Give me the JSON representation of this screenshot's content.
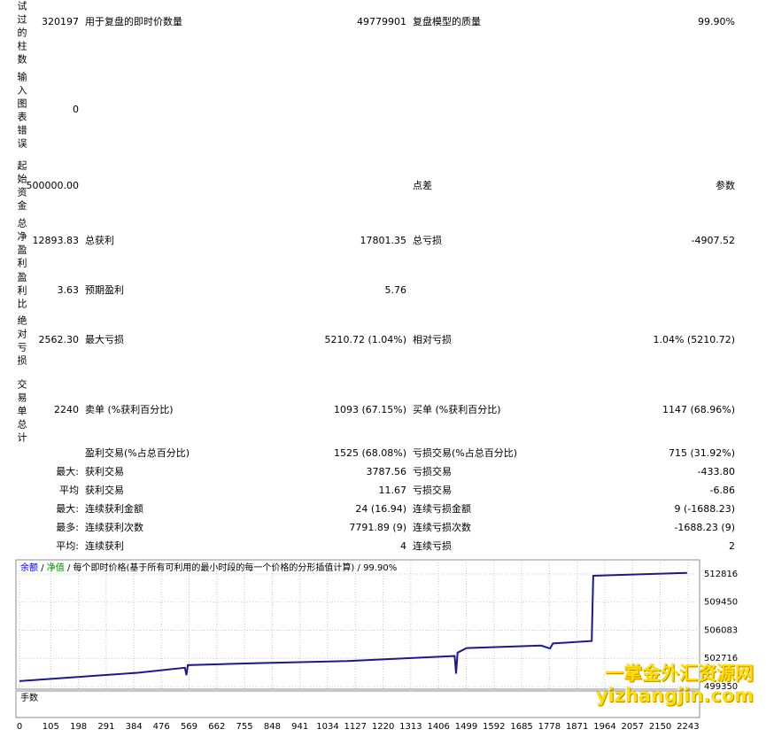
{
  "table": {
    "rows": [
      {
        "label": "试过的柱数",
        "value": "320197",
        "c1": "用于复盘的即时价数量",
        "v1": "49779901",
        "c2": "复盘模型的质量",
        "v2": "99.90%"
      },
      {
        "label": "输入图表错误",
        "value": "0"
      },
      {
        "label": "起始资金",
        "value": "500000.00",
        "c2": "点差",
        "v2": "参数"
      },
      {
        "label": "总净盈利",
        "value": "12893.83",
        "c1": "总获利",
        "v1": "17801.35",
        "c2": "总亏损",
        "v2": "-4907.52"
      },
      {
        "label": "盈利比",
        "value": "3.63",
        "c1": "预期盈利",
        "v1": "5.76"
      },
      {
        "label": "绝对亏损",
        "value": "2562.30",
        "c1": "最大亏损",
        "v1": "5210.72 (1.04%)",
        "c2": "相对亏损",
        "v2": "1.04% (5210.72)"
      },
      {
        "label": "交易单总计",
        "value": "2240",
        "c1": "卖单 (%获利百分比)",
        "v1": "1093 (67.15%)",
        "c2": "买单 (%获利百分比)",
        "v2": "1147 (68.96%)"
      },
      {
        "c1": "盈利交易(%占总百分比)",
        "v1": "1525 (68.08%)",
        "c2": "亏损交易(%占总百分比)",
        "v2": "715 (31.92%)"
      },
      {
        "prefix": "最大:",
        "c1": "获利交易",
        "v1": "3787.56",
        "c2": "亏损交易",
        "v2": "-433.80"
      },
      {
        "prefix": "平均",
        "c1": "获利交易",
        "v1": "11.67",
        "c2": "亏损交易",
        "v2": "-6.86"
      },
      {
        "prefix": "最大:",
        "c1": "连续获利金额",
        "v1": "24 (16.94)",
        "c2": "连续亏损金额",
        "v2": "9 (-1688.23)"
      },
      {
        "prefix": "最多:",
        "c1": "连续获利次数",
        "v1": "7791.89 (9)",
        "c2": "连续亏损次数",
        "v2": "-1688.23 (9)"
      },
      {
        "prefix": "平均:",
        "c1": "连续获利",
        "v1": "4",
        "c2": "连续亏损",
        "v2": "2"
      }
    ]
  },
  "chart_data": {
    "type": "line",
    "legend_items": [
      {
        "label": "余额",
        "color": "#0000c0"
      },
      {
        "label": "净值",
        "color": "#008000"
      }
    ],
    "legend_separator": "/",
    "subtitle": "每个即时价格(基于所有可利用的最小时段的每一个价格的分形插值计算)",
    "quality": "99.90%",
    "lots_label": "手数",
    "color": "#1a1a8c",
    "x": [
      0,
      200,
      400,
      555,
      560,
      565,
      800,
      1100,
      1400,
      1460,
      1465,
      1470,
      1500,
      1750,
      1780,
      1790,
      1920,
      1925,
      1970,
      2240
    ],
    "values": [
      500000,
      500500,
      501000,
      501600,
      500700,
      501900,
      502150,
      502400,
      502900,
      503000,
      500900,
      503400,
      503950,
      504250,
      503900,
      504500,
      504800,
      512600,
      512650,
      512950
    ],
    "xlim": [
      0,
      2282
    ],
    "ylim": [
      499030,
      514510
    ],
    "xticks": [
      0,
      105,
      198,
      291,
      384,
      476,
      569,
      662,
      755,
      848,
      941,
      1034,
      1127,
      1220,
      1313,
      1406,
      1499,
      1592,
      1685,
      1778,
      1871,
      1964,
      2057,
      2150,
      2243
    ],
    "yticks": [
      499350,
      502716,
      506083,
      509450,
      512816
    ],
    "grid": true
  },
  "watermark": {
    "title": "一掌金外汇资源网",
    "url": "yizhangjin.com"
  }
}
